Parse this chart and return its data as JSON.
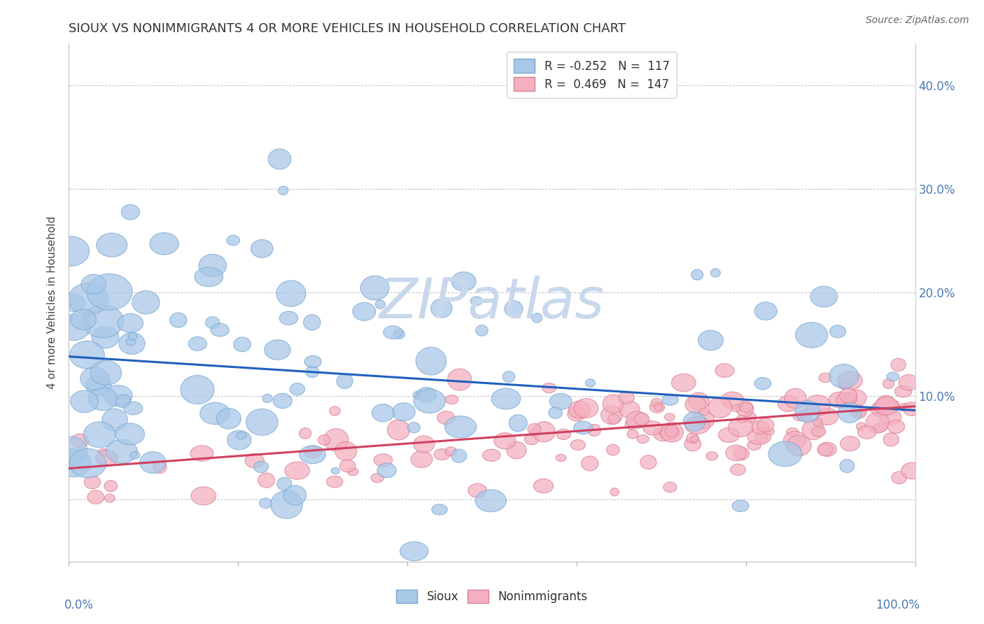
{
  "title": "SIOUX VS NONIMMIGRANTS 4 OR MORE VEHICLES IN HOUSEHOLD CORRELATION CHART",
  "source": "Source: ZipAtlas.com",
  "ylabel": "4 or more Vehicles in Household",
  "right_yticklabels": [
    "",
    "10.0%",
    "20.0%",
    "30.0%",
    "40.0%"
  ],
  "sioux_color": "#a8c8e8",
  "sioux_edge_color": "#7aa8d0",
  "nonimm_color": "#f4b0c0",
  "nonimm_edge_color": "#d88090",
  "sioux_line_color": "#2060c0",
  "nonimm_line_color": "#d04060",
  "watermark": "ZIPatlas",
  "watermark_color": "#c8d8ec",
  "background_color": "#ffffff",
  "grid_color": "#bbbbbb",
  "sioux_R": -0.252,
  "sioux_N": 117,
  "nonimm_R": 0.469,
  "nonimm_N": 147,
  "sioux_slope": -0.052,
  "sioux_intercept": 0.138,
  "nonimm_slope": 0.06,
  "nonimm_intercept": 0.03
}
